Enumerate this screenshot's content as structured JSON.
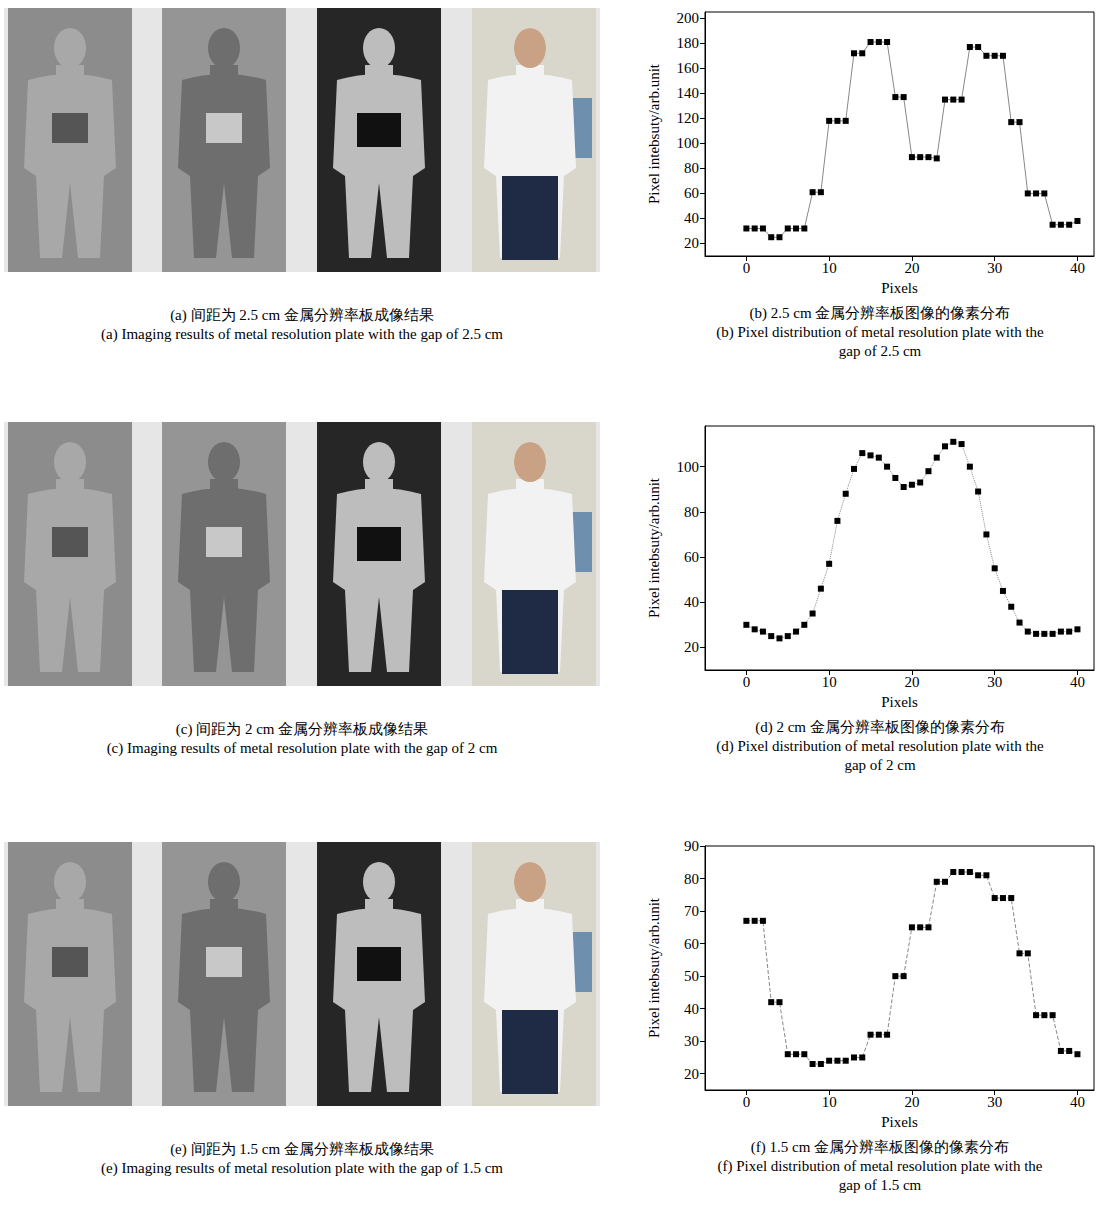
{
  "image_panels": [
    {
      "caption": [
        "(a) 间距为 2.5 cm 金属分辨率板成像结果",
        "(a) Imaging results of metal resolution plate with the gap of 2.5 cm"
      ]
    },
    {
      "caption": [
        "(c) 间距为 2 cm 金属分辨率板成像结果",
        "(c) Imaging results of metal resolution plate with the gap of 2 cm"
      ]
    },
    {
      "caption": [
        "(e) 间距为 1.5 cm 金属分辨率板成像结果",
        "(e) Imaging results of metal resolution plate with the gap of 1.5 cm"
      ]
    }
  ],
  "chart_data": [
    {
      "type": "line",
      "title": "(b) 2.5 cm 金属分辨率板图像的像素分布",
      "subtitle": "(b) Pixel distribution of metal resolution plate with the gap of 2.5 cm",
      "x_label": "Pixels",
      "y_label": "Pixel intebsuty/arb.unit",
      "x": [
        0,
        1,
        2,
        3,
        4,
        5,
        6,
        7,
        8,
        9,
        10,
        11,
        12,
        13,
        14,
        15,
        16,
        17,
        18,
        19,
        20,
        21,
        22,
        23,
        24,
        25,
        26,
        27,
        28,
        29,
        30,
        31,
        32,
        33,
        34,
        35,
        36,
        37,
        38,
        39,
        40
      ],
      "values": [
        32,
        32,
        32,
        25,
        25,
        32,
        32,
        32,
        61,
        61,
        118,
        118,
        118,
        172,
        172,
        181,
        181,
        181,
        137,
        137,
        89,
        89,
        89,
        88,
        135,
        135,
        135,
        177,
        177,
        170,
        170,
        170,
        117,
        117,
        60,
        60,
        60,
        35,
        35,
        35,
        38
      ],
      "color": "#000000",
      "marker": "square",
      "line_style": "solid",
      "xlim": [
        -5,
        42
      ],
      "xticks": [
        0,
        10,
        20,
        30,
        40
      ],
      "ylim": [
        10,
        205
      ],
      "yticks": [
        20,
        40,
        60,
        80,
        100,
        120,
        140,
        160,
        180,
        200
      ],
      "grid": false
    },
    {
      "type": "line",
      "title": "(d) 2 cm 金属分辨率板图像的像素分布",
      "subtitle": "(d) Pixel distribution of metal resolution plate with the gap of 2 cm",
      "x_label": "Pixels",
      "y_label": "Pixel intebsuty/arb.unit",
      "x": [
        0,
        1,
        2,
        3,
        4,
        5,
        6,
        7,
        8,
        9,
        10,
        11,
        12,
        13,
        14,
        15,
        16,
        17,
        18,
        19,
        20,
        21,
        22,
        23,
        24,
        25,
        26,
        27,
        28,
        29,
        30,
        31,
        32,
        33,
        34,
        35,
        36,
        37,
        38,
        39,
        40
      ],
      "values": [
        30,
        28,
        27,
        25,
        24,
        25,
        27,
        30,
        35,
        46,
        57,
        76,
        88,
        99,
        106,
        105,
        104,
        100,
        95,
        91,
        92,
        93,
        98,
        104,
        109,
        111,
        110,
        100,
        89,
        70,
        55,
        45,
        38,
        31,
        27,
        26,
        26,
        26,
        27,
        27,
        28
      ],
      "color": "#000000",
      "marker": "square",
      "line_style": "dotted",
      "xlim": [
        -5,
        42
      ],
      "xticks": [
        0,
        10,
        20,
        30,
        40
      ],
      "ylim": [
        10,
        118
      ],
      "yticks": [
        20,
        40,
        60,
        80,
        100
      ],
      "grid": false
    },
    {
      "type": "line",
      "title": "(f) 1.5 cm 金属分辨率板图像的像素分布",
      "subtitle": "(f) Pixel distribution of metal resolution plate with the gap of 1.5 cm",
      "x_label": "Pixels",
      "y_label": "Pixel intebsuty/arb.unit",
      "x": [
        0,
        1,
        2,
        3,
        4,
        5,
        6,
        7,
        8,
        9,
        10,
        11,
        12,
        13,
        14,
        15,
        16,
        17,
        18,
        19,
        20,
        21,
        22,
        23,
        24,
        25,
        26,
        27,
        28,
        29,
        30,
        31,
        32,
        33,
        34,
        35,
        36,
        37,
        38,
        39,
        40
      ],
      "values": [
        67,
        67,
        67,
        42,
        42,
        26,
        26,
        26,
        23,
        23,
        24,
        24,
        24,
        25,
        25,
        32,
        32,
        32,
        50,
        50,
        65,
        65,
        65,
        79,
        79,
        82,
        82,
        82,
        81,
        81,
        74,
        74,
        74,
        57,
        57,
        38,
        38,
        38,
        27,
        27,
        26
      ],
      "color": "#000000",
      "marker": "square",
      "line_style": "dashed",
      "xlim": [
        -5,
        42
      ],
      "xticks": [
        0,
        10,
        20,
        30,
        40
      ],
      "ylim": [
        15,
        90
      ],
      "yticks": [
        20,
        30,
        40,
        50,
        60,
        70,
        80,
        90
      ],
      "grid": false
    }
  ]
}
